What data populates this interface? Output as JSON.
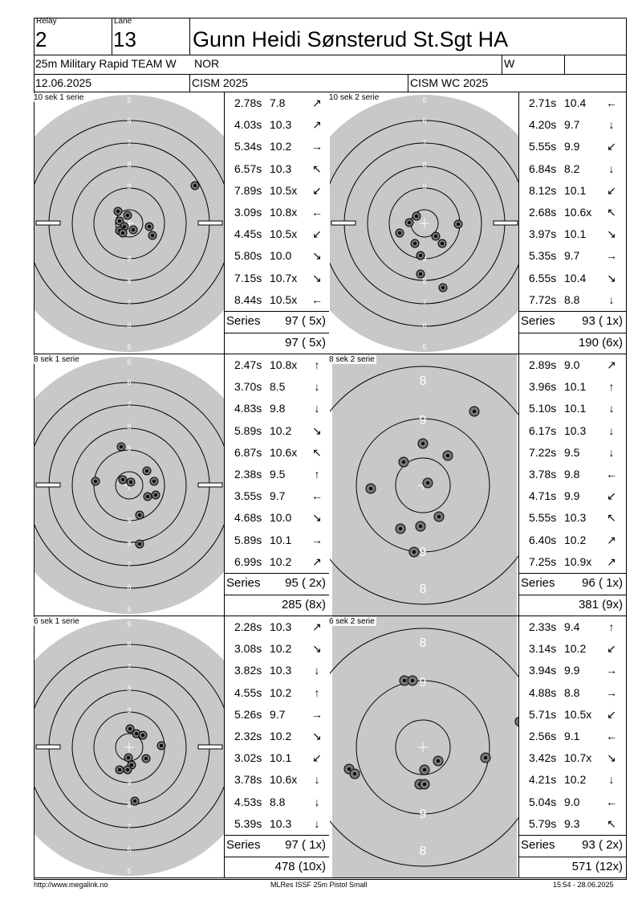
{
  "header": {
    "relay_label": "Relay",
    "relay": "2",
    "lane_label": "Lane",
    "lane": "13",
    "name": "Gunn Heidi Sønsterud St.Sgt HA",
    "event": "25m Military Rapid TEAM W",
    "country": "NOR",
    "category": "W",
    "date": "12.06.2025",
    "competition": "CISM 2025",
    "match": "CISM WC 2025"
  },
  "series_label": "Series",
  "blocks": [
    {
      "left": {
        "title": "10 sek 1 serie",
        "shots": [
          {
            "time": "2.78s",
            "value": "7.8",
            "arrow": "↗"
          },
          {
            "time": "4.03s",
            "value": "10.3",
            "arrow": "↗"
          },
          {
            "time": "5.34s",
            "value": "10.2",
            "arrow": "→"
          },
          {
            "time": "6.57s",
            "value": "10.3",
            "arrow": "↖"
          },
          {
            "time": "7.89s",
            "value": "10.5x",
            "arrow": "↙"
          },
          {
            "time": "3.09s",
            "value": "10.8x",
            "arrow": "←"
          },
          {
            "time": "4.45s",
            "value": "10.5x",
            "arrow": "↙"
          },
          {
            "time": "5.80s",
            "value": "10.0",
            "arrow": "↘"
          },
          {
            "time": "7.15s",
            "value": "10.7x",
            "arrow": "↘"
          },
          {
            "time": "8.44s",
            "value": "10.5x",
            "arrow": "←"
          }
        ],
        "series": "97 ( 5x)",
        "total": "97 ( 5x)"
      },
      "right": {
        "title": "10 sek 2 serie",
        "shots": [
          {
            "time": "2.71s",
            "value": "10.4",
            "arrow": "←"
          },
          {
            "time": "4.20s",
            "value": "9.7",
            "arrow": "↓"
          },
          {
            "time": "5.55s",
            "value": "9.9",
            "arrow": "↙"
          },
          {
            "time": "6.84s",
            "value": "8.2",
            "arrow": "↓"
          },
          {
            "time": "8.12s",
            "value": "10.1",
            "arrow": "↙"
          },
          {
            "time": "2.68s",
            "value": "10.6x",
            "arrow": "↖"
          },
          {
            "time": "3.97s",
            "value": "10.1",
            "arrow": "↘"
          },
          {
            "time": "5.35s",
            "value": "9.7",
            "arrow": "→"
          },
          {
            "time": "6.55s",
            "value": "10.4",
            "arrow": "↘"
          },
          {
            "time": "7.72s",
            "value": "8.8",
            "arrow": "↓"
          }
        ],
        "series": "93 ( 1x)",
        "total": "190 (6x)"
      }
    },
    {
      "left": {
        "title": "8 sek 1 serie",
        "shots": [
          {
            "time": "2.47s",
            "value": "10.8x",
            "arrow": "↑"
          },
          {
            "time": "3.70s",
            "value": "8.5",
            "arrow": "↓"
          },
          {
            "time": "4.83s",
            "value": "9.8",
            "arrow": "↓"
          },
          {
            "time": "5.89s",
            "value": "10.2",
            "arrow": "↘"
          },
          {
            "time": "6.87s",
            "value": "10.6x",
            "arrow": "↖"
          },
          {
            "time": "2.38s",
            "value": "9.5",
            "arrow": "↑"
          },
          {
            "time": "3.55s",
            "value": "9.7",
            "arrow": "←"
          },
          {
            "time": "4.68s",
            "value": "10.0",
            "arrow": "↘"
          },
          {
            "time": "5.89s",
            "value": "10.1",
            "arrow": "→"
          },
          {
            "time": "6.99s",
            "value": "10.2",
            "arrow": "↗"
          }
        ],
        "series": "95 ( 2x)",
        "total": "285 (8x)"
      },
      "right": {
        "title": "8 sek 2 serie",
        "shots": [
          {
            "time": "2.89s",
            "value": "9.0",
            "arrow": "↗"
          },
          {
            "time": "3.96s",
            "value": "10.1",
            "arrow": "↑"
          },
          {
            "time": "5.10s",
            "value": "10.1",
            "arrow": "↓"
          },
          {
            "time": "6.17s",
            "value": "10.3",
            "arrow": "↓"
          },
          {
            "time": "7.22s",
            "value": "9.5",
            "arrow": "↓"
          },
          {
            "time": "3.78s",
            "value": "9.8",
            "arrow": "←"
          },
          {
            "time": "4.71s",
            "value": "9.9",
            "arrow": "↙"
          },
          {
            "time": "5.55s",
            "value": "10.3",
            "arrow": "↖"
          },
          {
            "time": "6.40s",
            "value": "10.2",
            "arrow": "↗"
          },
          {
            "time": "7.25s",
            "value": "10.9x",
            "arrow": "↗"
          }
        ],
        "series": "96 ( 1x)",
        "total": "381 (9x)"
      }
    },
    {
      "left": {
        "title": "6 sek 1 serie",
        "shots": [
          {
            "time": "2.28s",
            "value": "10.3",
            "arrow": "↗"
          },
          {
            "time": "3.08s",
            "value": "10.2",
            "arrow": "↘"
          },
          {
            "time": "3.82s",
            "value": "10.3",
            "arrow": "↓"
          },
          {
            "time": "4.55s",
            "value": "10.2",
            "arrow": "↑"
          },
          {
            "time": "5.26s",
            "value": "9.7",
            "arrow": "→"
          },
          {
            "time": "2.32s",
            "value": "10.2",
            "arrow": "↘"
          },
          {
            "time": "3.02s",
            "value": "10.1",
            "arrow": "↙"
          },
          {
            "time": "3.78s",
            "value": "10.6x",
            "arrow": "↓"
          },
          {
            "time": "4.53s",
            "value": "8.8",
            "arrow": "↓"
          },
          {
            "time": "5.39s",
            "value": "10.3",
            "arrow": "↓"
          }
        ],
        "series": "97 ( 1x)",
        "total": "478 (10x)"
      },
      "right": {
        "title": "6 sek 2 serie",
        "shots": [
          {
            "time": "2.33s",
            "value": "9.4",
            "arrow": "↑"
          },
          {
            "time": "3.14s",
            "value": "10.2",
            "arrow": "↙"
          },
          {
            "time": "3.94s",
            "value": "9.9",
            "arrow": "→"
          },
          {
            "time": "4.88s",
            "value": "8.8",
            "arrow": "→"
          },
          {
            "time": "5.71s",
            "value": "10.5x",
            "arrow": "↙"
          },
          {
            "time": "2.56s",
            "value": "9.1",
            "arrow": "←"
          },
          {
            "time": "3.42s",
            "value": "10.7x",
            "arrow": "↘"
          },
          {
            "time": "4.21s",
            "value": "10.2",
            "arrow": "↓"
          },
          {
            "time": "5.04s",
            "value": "9.0",
            "arrow": "←"
          },
          {
            "time": "5.79s",
            "value": "9.3",
            "arrow": "↖"
          }
        ],
        "series": "93 ( 2x)",
        "total": "571 (12x)"
      }
    }
  ],
  "target_labels": {
    "full": [
      "5",
      "6",
      "7",
      "8",
      "9"
    ],
    "zoom": [
      "8",
      "9"
    ]
  },
  "footer": {
    "url": "http://www.megalink.no",
    "program": "MLRes ISSF 25m Pistol Small",
    "timestamp": "15:54 - 28.06.2025"
  },
  "colors": {
    "target_bg": "#c8c8c8",
    "line": "#000000",
    "paper": "#ffffff"
  }
}
